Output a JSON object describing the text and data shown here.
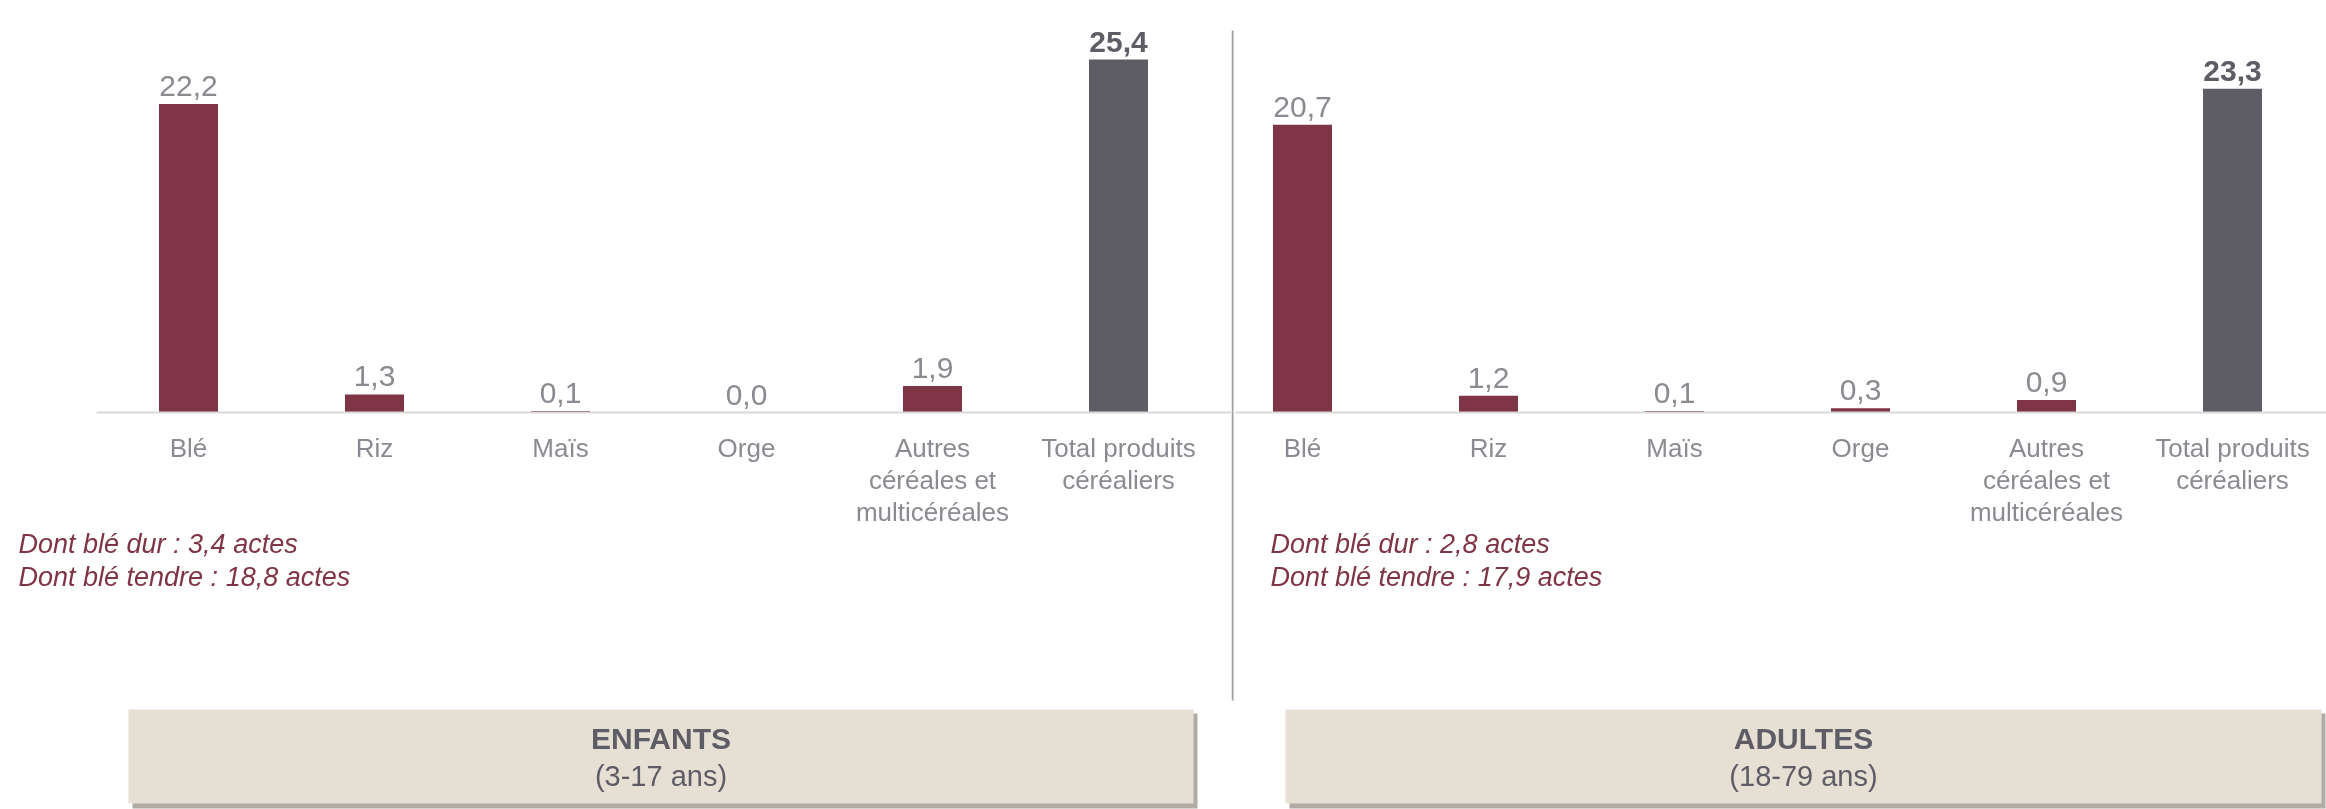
{
  "chart_data": [
    {
      "type": "bar",
      "title": "ENFANTS",
      "subtitle": "(3-17 ans)",
      "categories": [
        "Blé",
        "Riz",
        "Maïs",
        "Orge",
        "Autres céréales et multicéréales",
        "Total produits céréaliers"
      ],
      "values": [
        22.2,
        1.3,
        0.1,
        0.0,
        1.9,
        25.4
      ],
      "colors": [
        "#7f3545",
        "#7f3545",
        "#7f3545",
        "#7f3545",
        "#7f3545",
        "#5e5d66"
      ],
      "value_labels": [
        "22,2",
        "1,3",
        "0,1",
        "0,0",
        "1,9",
        "25,4"
      ],
      "annotations": [
        "Dont blé dur : 3,4 actes",
        "Dont blé tendre : 18,8 actes"
      ]
    },
    {
      "type": "bar",
      "title": "ADULTES",
      "subtitle": "(18-79 ans)",
      "categories": [
        "Blé",
        "Riz",
        "Maïs",
        "Orge",
        "Autres céréales et multicéréales",
        "Total produits céréaliers"
      ],
      "values": [
        20.7,
        1.2,
        0.1,
        0.3,
        0.9,
        23.3
      ],
      "colors": [
        "#7f3545",
        "#7f3545",
        "#7f3545",
        "#7f3545",
        "#7f3545",
        "#5e5d66"
      ],
      "value_labels": [
        "20,7",
        "1,2",
        "0,1",
        "0,3",
        "0,9",
        "23,3"
      ],
      "annotations": [
        "Dont blé dur : 2,8 actes",
        "Dont blé tendre : 17,9 actes"
      ]
    }
  ]
}
